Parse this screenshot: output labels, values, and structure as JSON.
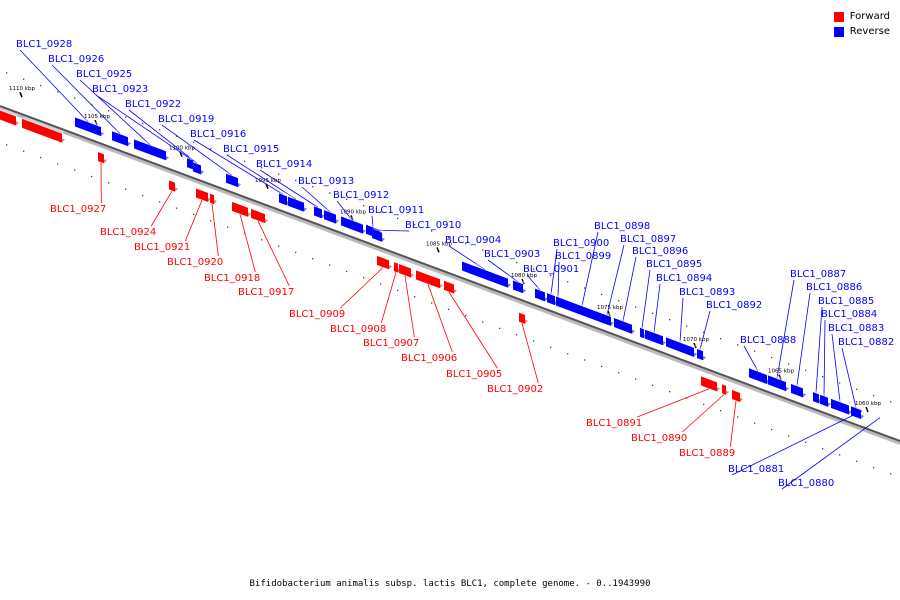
{
  "legend": {
    "forward_label": "Forward",
    "reverse_label": "Reverse",
    "forward_color": "#ff0000",
    "reverse_color": "#0000ff"
  },
  "caption": "Bifidobacterium animalis subsp. lactis BLC1, complete genome. - 0..1943990",
  "ticks": [
    "1110 kbp",
    "1105 kbp",
    "1100 kbp",
    "1095 kbp",
    "1090 kbp",
    "1085 kbp",
    "1080 kbp",
    "1075 kbp",
    "1070 kbp",
    "1065 kbp",
    "1060 kbp"
  ],
  "genes": [
    {
      "id": "BLC1_0928",
      "strand": "reverse"
    },
    {
      "id": "BLC1_0926",
      "strand": "reverse"
    },
    {
      "id": "BLC1_0925",
      "strand": "reverse"
    },
    {
      "id": "BLC1_0923",
      "strand": "reverse"
    },
    {
      "id": "BLC1_0922",
      "strand": "reverse"
    },
    {
      "id": "BLC1_0919",
      "strand": "reverse"
    },
    {
      "id": "BLC1_0916",
      "strand": "reverse"
    },
    {
      "id": "BLC1_0915",
      "strand": "reverse"
    },
    {
      "id": "BLC1_0914",
      "strand": "reverse"
    },
    {
      "id": "BLC1_0913",
      "strand": "reverse"
    },
    {
      "id": "BLC1_0912",
      "strand": "reverse"
    },
    {
      "id": "BLC1_0911",
      "strand": "reverse"
    },
    {
      "id": "BLC1_0910",
      "strand": "reverse"
    },
    {
      "id": "BLC1_0904",
      "strand": "reverse"
    },
    {
      "id": "BLC1_0903",
      "strand": "reverse"
    },
    {
      "id": "BLC1_0901",
      "strand": "reverse"
    },
    {
      "id": "BLC1_0900",
      "strand": "reverse"
    },
    {
      "id": "BLC1_0899",
      "strand": "reverse"
    },
    {
      "id": "BLC1_0898",
      "strand": "reverse"
    },
    {
      "id": "BLC1_0897",
      "strand": "reverse"
    },
    {
      "id": "BLC1_0896",
      "strand": "reverse"
    },
    {
      "id": "BLC1_0895",
      "strand": "reverse"
    },
    {
      "id": "BLC1_0894",
      "strand": "reverse"
    },
    {
      "id": "BLC1_0893",
      "strand": "reverse"
    },
    {
      "id": "BLC1_0892",
      "strand": "reverse"
    },
    {
      "id": "BLC1_0888",
      "strand": "reverse"
    },
    {
      "id": "BLC1_0887",
      "strand": "reverse"
    },
    {
      "id": "BLC1_0886",
      "strand": "reverse"
    },
    {
      "id": "BLC1_0885",
      "strand": "reverse"
    },
    {
      "id": "BLC1_0884",
      "strand": "reverse"
    },
    {
      "id": "BLC1_0883",
      "strand": "reverse"
    },
    {
      "id": "BLC1_0882",
      "strand": "reverse"
    },
    {
      "id": "BLC1_0881",
      "strand": "reverse"
    },
    {
      "id": "BLC1_0880",
      "strand": "reverse"
    },
    {
      "id": "BLC1_0927",
      "strand": "forward"
    },
    {
      "id": "BLC1_0924",
      "strand": "forward"
    },
    {
      "id": "BLC1_0921",
      "strand": "forward"
    },
    {
      "id": "BLC1_0920",
      "strand": "forward"
    },
    {
      "id": "BLC1_0918",
      "strand": "forward"
    },
    {
      "id": "BLC1_0917",
      "strand": "forward"
    },
    {
      "id": "BLC1_0909",
      "strand": "forward"
    },
    {
      "id": "BLC1_0908",
      "strand": "forward"
    },
    {
      "id": "BLC1_0907",
      "strand": "forward"
    },
    {
      "id": "BLC1_0906",
      "strand": "forward"
    },
    {
      "id": "BLC1_0905",
      "strand": "forward"
    },
    {
      "id": "BLC1_0902",
      "strand": "forward"
    },
    {
      "id": "BLC1_0891",
      "strand": "forward"
    },
    {
      "id": "BLC1_0890",
      "strand": "forward"
    },
    {
      "id": "BLC1_0889",
      "strand": "forward"
    }
  ]
}
